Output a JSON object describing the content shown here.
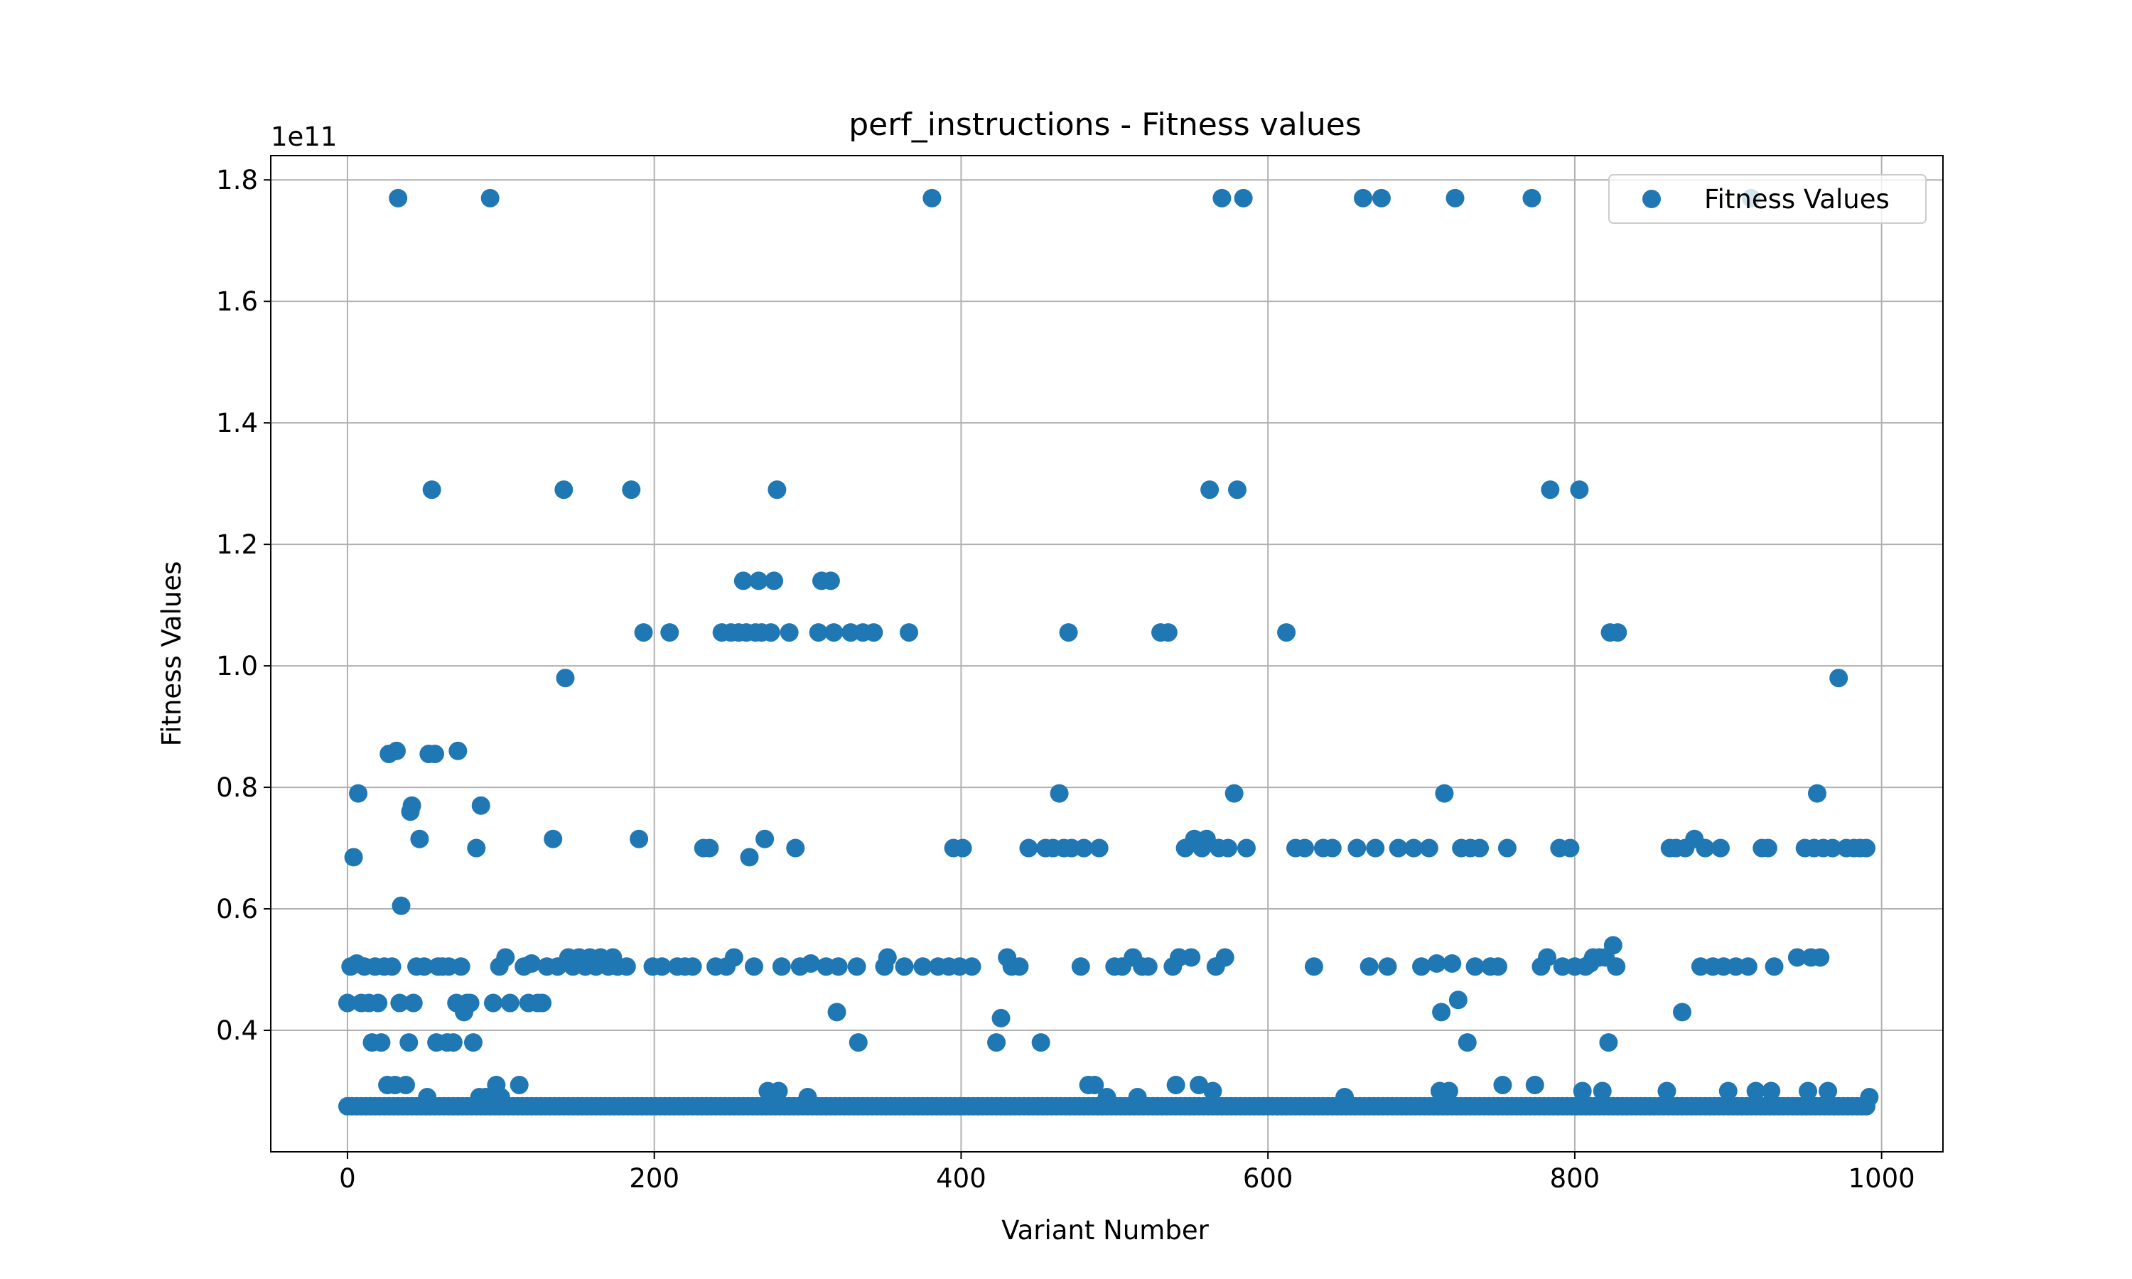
{
  "chart_data": {
    "type": "scatter",
    "title": "perf_instructions - Fitness values",
    "xlabel": "Variant Number",
    "ylabel": "Fitness Values",
    "y_offset_label": "1e11",
    "xlim": [
      -50,
      1040
    ],
    "ylim": [
      0.2,
      1.84
    ],
    "y_units": "1e11",
    "x_ticks": [
      0,
      200,
      400,
      600,
      800,
      1000
    ],
    "y_ticks": [
      0.4,
      0.6,
      0.8,
      1.0,
      1.2,
      1.4,
      1.6,
      1.8
    ],
    "x_tick_labels": [
      "0",
      "200",
      "400",
      "600",
      "800",
      "1000"
    ],
    "y_tick_labels": [
      "0.4",
      "0.6",
      "0.8",
      "1.0",
      "1.2",
      "1.4",
      "1.6",
      "1.8"
    ],
    "grid": true,
    "legend_position": "top-right",
    "series": [
      {
        "name": "Fitness Values",
        "color": "#1f77b4",
        "baseline": {
          "x_start": 0,
          "x_end": 992,
          "step": 3,
          "y": 0.275
        },
        "points": [
          [
            0,
            0.445
          ],
          [
            2,
            0.505
          ],
          [
            4,
            0.685
          ],
          [
            6,
            0.51
          ],
          [
            7,
            0.79
          ],
          [
            9,
            0.445
          ],
          [
            11,
            0.505
          ],
          [
            14,
            0.445
          ],
          [
            16,
            0.38
          ],
          [
            18,
            0.505
          ],
          [
            20,
            0.445
          ],
          [
            22,
            0.38
          ],
          [
            24,
            0.505
          ],
          [
            26,
            0.31
          ],
          [
            27,
            0.855
          ],
          [
            29,
            0.505
          ],
          [
            31,
            0.31
          ],
          [
            32,
            0.86
          ],
          [
            33,
            1.77
          ],
          [
            34,
            0.445
          ],
          [
            35,
            0.605
          ],
          [
            38,
            0.31
          ],
          [
            40,
            0.38
          ],
          [
            41,
            0.76
          ],
          [
            42,
            0.77
          ],
          [
            43,
            0.445
          ],
          [
            45,
            0.505
          ],
          [
            47,
            0.715
          ],
          [
            50,
            0.505
          ],
          [
            52,
            0.29
          ],
          [
            53,
            0.855
          ],
          [
            55,
            1.29
          ],
          [
            57,
            0.855
          ],
          [
            58,
            0.38
          ],
          [
            59,
            0.505
          ],
          [
            62,
            0.505
          ],
          [
            65,
            0.38
          ],
          [
            66,
            0.505
          ],
          [
            69,
            0.38
          ],
          [
            71,
            0.445
          ],
          [
            72,
            0.86
          ],
          [
            74,
            0.505
          ],
          [
            76,
            0.43
          ],
          [
            78,
            0.445
          ],
          [
            80,
            0.445
          ],
          [
            82,
            0.38
          ],
          [
            84,
            0.7
          ],
          [
            86,
            0.29
          ],
          [
            87,
            0.77
          ],
          [
            90,
            0.29
          ],
          [
            93,
            1.77
          ],
          [
            95,
            0.445
          ],
          [
            97,
            0.31
          ],
          [
            99,
            0.505
          ],
          [
            100,
            0.29
          ],
          [
            103,
            0.52
          ],
          [
            106,
            0.445
          ],
          [
            112,
            0.31
          ],
          [
            115,
            0.505
          ],
          [
            118,
            0.445
          ],
          [
            120,
            0.51
          ],
          [
            124,
            0.445
          ],
          [
            127,
            0.445
          ],
          [
            130,
            0.505
          ],
          [
            134,
            0.715
          ],
          [
            137,
            0.505
          ],
          [
            141,
            1.29
          ],
          [
            142,
            0.98
          ],
          [
            144,
            0.52
          ],
          [
            147,
            0.505
          ],
          [
            151,
            0.52
          ],
          [
            155,
            0.505
          ],
          [
            158,
            0.52
          ],
          [
            162,
            0.505
          ],
          [
            165,
            0.52
          ],
          [
            170,
            0.505
          ],
          [
            173,
            0.52
          ],
          [
            176,
            0.505
          ],
          [
            182,
            0.505
          ],
          [
            185,
            1.29
          ],
          [
            190,
            0.715
          ],
          [
            193,
            1.055
          ],
          [
            199,
            0.505
          ],
          [
            205,
            0.505
          ],
          [
            210,
            1.055
          ],
          [
            215,
            0.505
          ],
          [
            220,
            0.505
          ],
          [
            225,
            0.505
          ],
          [
            232,
            0.7
          ],
          [
            236,
            0.7
          ],
          [
            240,
            0.505
          ],
          [
            244,
            1.055
          ],
          [
            247,
            0.505
          ],
          [
            250,
            1.055
          ],
          [
            252,
            0.52
          ],
          [
            255,
            1.055
          ],
          [
            258,
            1.14
          ],
          [
            260,
            1.055
          ],
          [
            262,
            0.685
          ],
          [
            265,
            0.505
          ],
          [
            266,
            1.055
          ],
          [
            268,
            1.14
          ],
          [
            270,
            1.055
          ],
          [
            272,
            0.715
          ],
          [
            274,
            0.3
          ],
          [
            276,
            1.055
          ],
          [
            278,
            1.14
          ],
          [
            280,
            1.29
          ],
          [
            281,
            0.3
          ],
          [
            283,
            0.505
          ],
          [
            288,
            1.055
          ],
          [
            292,
            0.7
          ],
          [
            295,
            0.505
          ],
          [
            300,
            0.29
          ],
          [
            302,
            0.51
          ],
          [
            307,
            1.055
          ],
          [
            309,
            1.14
          ],
          [
            312,
            0.505
          ],
          [
            315,
            1.14
          ],
          [
            317,
            1.055
          ],
          [
            319,
            0.43
          ],
          [
            320,
            0.505
          ],
          [
            328,
            1.055
          ],
          [
            332,
            0.505
          ],
          [
            333,
            0.38
          ],
          [
            336,
            1.055
          ],
          [
            343,
            1.055
          ],
          [
            350,
            0.505
          ],
          [
            352,
            0.52
          ],
          [
            363,
            0.505
          ],
          [
            366,
            1.055
          ],
          [
            375,
            0.505
          ],
          [
            381,
            1.77
          ],
          [
            385,
            0.505
          ],
          [
            392,
            0.505
          ],
          [
            395,
            0.7
          ],
          [
            399,
            0.505
          ],
          [
            401,
            0.7
          ],
          [
            407,
            0.505
          ],
          [
            423,
            0.38
          ],
          [
            426,
            0.42
          ],
          [
            430,
            0.52
          ],
          [
            433,
            0.505
          ],
          [
            438,
            0.505
          ],
          [
            444,
            0.7
          ],
          [
            452,
            0.38
          ],
          [
            455,
            0.7
          ],
          [
            460,
            0.7
          ],
          [
            464,
            0.79
          ],
          [
            467,
            0.7
          ],
          [
            470,
            1.055
          ],
          [
            472,
            0.7
          ],
          [
            478,
            0.505
          ],
          [
            480,
            0.7
          ],
          [
            483,
            0.31
          ],
          [
            487,
            0.31
          ],
          [
            490,
            0.7
          ],
          [
            495,
            0.29
          ],
          [
            500,
            0.505
          ],
          [
            505,
            0.505
          ],
          [
            512,
            0.52
          ],
          [
            515,
            0.29
          ],
          [
            518,
            0.505
          ],
          [
            522,
            0.505
          ],
          [
            530,
            1.055
          ],
          [
            535,
            1.055
          ],
          [
            538,
            0.505
          ],
          [
            540,
            0.31
          ],
          [
            542,
            0.52
          ],
          [
            546,
            0.7
          ],
          [
            550,
            0.52
          ],
          [
            552,
            0.715
          ],
          [
            555,
            0.31
          ],
          [
            557,
            0.7
          ],
          [
            560,
            0.715
          ],
          [
            562,
            1.29
          ],
          [
            564,
            0.3
          ],
          [
            566,
            0.505
          ],
          [
            568,
            0.7
          ],
          [
            570,
            1.77
          ],
          [
            572,
            0.52
          ],
          [
            574,
            0.7
          ],
          [
            578,
            0.79
          ],
          [
            580,
            1.29
          ],
          [
            584,
            1.77
          ],
          [
            586,
            0.7
          ],
          [
            612,
            1.055
          ],
          [
            618,
            0.7
          ],
          [
            624,
            0.7
          ],
          [
            630,
            0.505
          ],
          [
            636,
            0.7
          ],
          [
            642,
            0.7
          ],
          [
            650,
            0.29
          ],
          [
            658,
            0.7
          ],
          [
            662,
            1.77
          ],
          [
            666,
            0.505
          ],
          [
            670,
            0.7
          ],
          [
            674,
            1.77
          ],
          [
            678,
            0.505
          ],
          [
            685,
            0.7
          ],
          [
            695,
            0.7
          ],
          [
            700,
            0.505
          ],
          [
            705,
            0.7
          ],
          [
            710,
            0.51
          ],
          [
            712,
            0.3
          ],
          [
            713,
            0.43
          ],
          [
            715,
            0.79
          ],
          [
            718,
            0.3
          ],
          [
            720,
            0.51
          ],
          [
            722,
            1.77
          ],
          [
            724,
            0.45
          ],
          [
            726,
            0.7
          ],
          [
            730,
            0.38
          ],
          [
            732,
            0.7
          ],
          [
            735,
            0.505
          ],
          [
            738,
            0.7
          ],
          [
            745,
            0.505
          ],
          [
            750,
            0.505
          ],
          [
            753,
            0.31
          ],
          [
            756,
            0.7
          ],
          [
            772,
            1.77
          ],
          [
            774,
            0.31
          ],
          [
            778,
            0.505
          ],
          [
            782,
            0.52
          ],
          [
            784,
            1.29
          ],
          [
            790,
            0.7
          ],
          [
            792,
            0.505
          ],
          [
            797,
            0.7
          ],
          [
            800,
            0.505
          ],
          [
            803,
            1.29
          ],
          [
            805,
            0.3
          ],
          [
            807,
            0.505
          ],
          [
            810,
            0.51
          ],
          [
            812,
            0.52
          ],
          [
            816,
            0.52
          ],
          [
            818,
            0.3
          ],
          [
            820,
            0.52
          ],
          [
            822,
            0.38
          ],
          [
            823,
            1.055
          ],
          [
            825,
            0.54
          ],
          [
            827,
            0.505
          ],
          [
            828,
            1.055
          ],
          [
            860,
            0.3
          ],
          [
            862,
            0.7
          ],
          [
            866,
            0.7
          ],
          [
            870,
            0.43
          ],
          [
            872,
            0.7
          ],
          [
            878,
            0.715
          ],
          [
            882,
            0.505
          ],
          [
            885,
            0.7
          ],
          [
            890,
            0.505
          ],
          [
            895,
            0.7
          ],
          [
            897,
            0.505
          ],
          [
            900,
            0.3
          ],
          [
            905,
            0.505
          ],
          [
            913,
            0.505
          ],
          [
            915,
            1.77
          ],
          [
            918,
            0.3
          ],
          [
            922,
            0.7
          ],
          [
            926,
            0.7
          ],
          [
            928,
            0.3
          ],
          [
            930,
            0.505
          ],
          [
            945,
            0.52
          ],
          [
            950,
            0.7
          ],
          [
            952,
            0.3
          ],
          [
            954,
            0.52
          ],
          [
            956,
            0.7
          ],
          [
            958,
            0.79
          ],
          [
            960,
            0.52
          ],
          [
            962,
            0.7
          ],
          [
            965,
            0.3
          ],
          [
            968,
            0.7
          ],
          [
            972,
            0.98
          ],
          [
            977,
            0.7
          ],
          [
            982,
            0.7
          ],
          [
            986,
            0.7
          ],
          [
            990,
            0.7
          ],
          [
            992,
            0.29
          ]
        ]
      }
    ]
  }
}
